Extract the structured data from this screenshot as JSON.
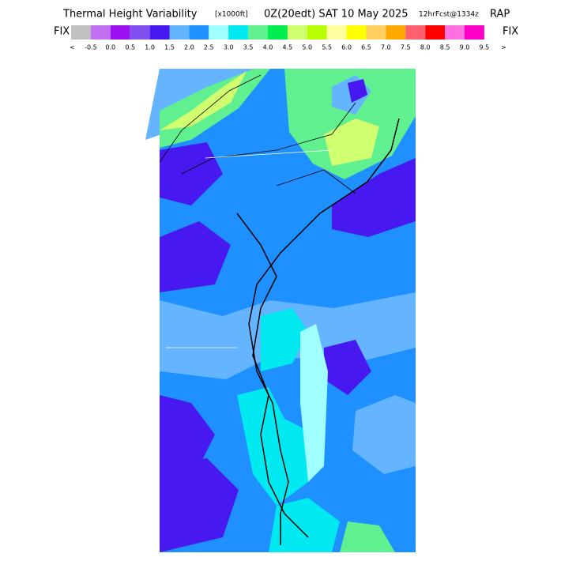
{
  "header": {
    "title": "Thermal Height Variability",
    "units": "[x1000ft]",
    "valid": "0Z(20edt) SAT 10 May 2025",
    "forecast": "12hrFcst@1334z",
    "model": "RAP"
  },
  "colorbar": {
    "left_label": "FIX",
    "right_label": "FIX",
    "left_arrow": "<",
    "right_arrow": ">",
    "colors": [
      "#c0c0c0",
      "#c070f0",
      "#9a10f0",
      "#8050f0",
      "#4818f0",
      "#64b4ff",
      "#1e90ff",
      "#a0ffff",
      "#00e8f0",
      "#60f090",
      "#00ee50",
      "#d0ff70",
      "#b8ff00",
      "#ffffa0",
      "#ffff00",
      "#ffd060",
      "#ffa800",
      "#ff6070",
      "#ff0000",
      "#ff70e0",
      "#ff00c8"
    ],
    "labels": [
      "-0.5",
      "0.0",
      "0.5",
      "1.0",
      "1.5",
      "2.0",
      "2.5",
      "3.0",
      "3.5",
      "4.0",
      "4.5",
      "5.0",
      "5.5",
      "6.0",
      "6.5",
      "7.0",
      "7.5",
      "8.0",
      "8.5",
      "9.0",
      "9.5"
    ]
  }
}
